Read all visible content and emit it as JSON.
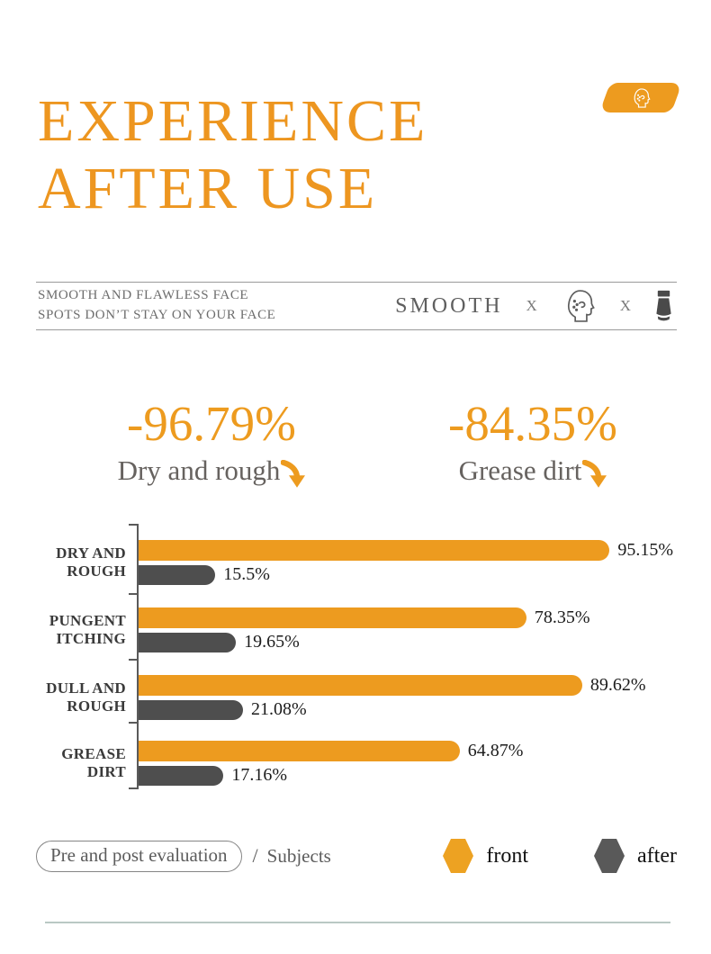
{
  "header": {
    "title_line1": "EXPERIENCE",
    "title_line2": "AFTER USE",
    "accent_color": "#ED9B1F"
  },
  "badge": {
    "icon": "face-profile-icon"
  },
  "tagline": {
    "line1": "SMOOTH AND FLAWLESS FACE",
    "line2": "SPOTS DON’T STAY ON YOUR FACE",
    "keyword": "SMOOTH",
    "separator": "X",
    "icons": [
      "face-outline-icon",
      "cosmetic-tube-icon"
    ]
  },
  "stats": [
    {
      "value": "-96.79%",
      "label": "Dry and rough",
      "icon": "down-arrow-icon"
    },
    {
      "value": "-84.35%",
      "label": "Grease dirt",
      "icon": "down-arrow-icon"
    }
  ],
  "chart_data": {
    "type": "bar",
    "orientation": "horizontal",
    "categories": [
      [
        "DRY AND",
        "ROUGH"
      ],
      [
        "PUNGENT",
        "ITCHING"
      ],
      [
        "DULL AND",
        "ROUGH"
      ],
      [
        "GREASE",
        "DIRT"
      ]
    ],
    "series": [
      {
        "name": "front",
        "color": "#ED9B1F",
        "values": [
          95.15,
          78.35,
          89.62,
          64.87
        ]
      },
      {
        "name": "after",
        "color": "#4E4E4E",
        "values": [
          15.5,
          19.65,
          21.08,
          17.16
        ]
      }
    ],
    "value_suffix": "%",
    "xlim": [
      0,
      100
    ],
    "grid": false,
    "legend_position": "bottom-right"
  },
  "footer": {
    "pill_label": "Pre and post evaluation",
    "separator": "/",
    "subjects_label": "Subjects",
    "legend": [
      {
        "label": "front",
        "color": "#EDA222"
      },
      {
        "label": "after",
        "color": "#595959"
      }
    ]
  }
}
